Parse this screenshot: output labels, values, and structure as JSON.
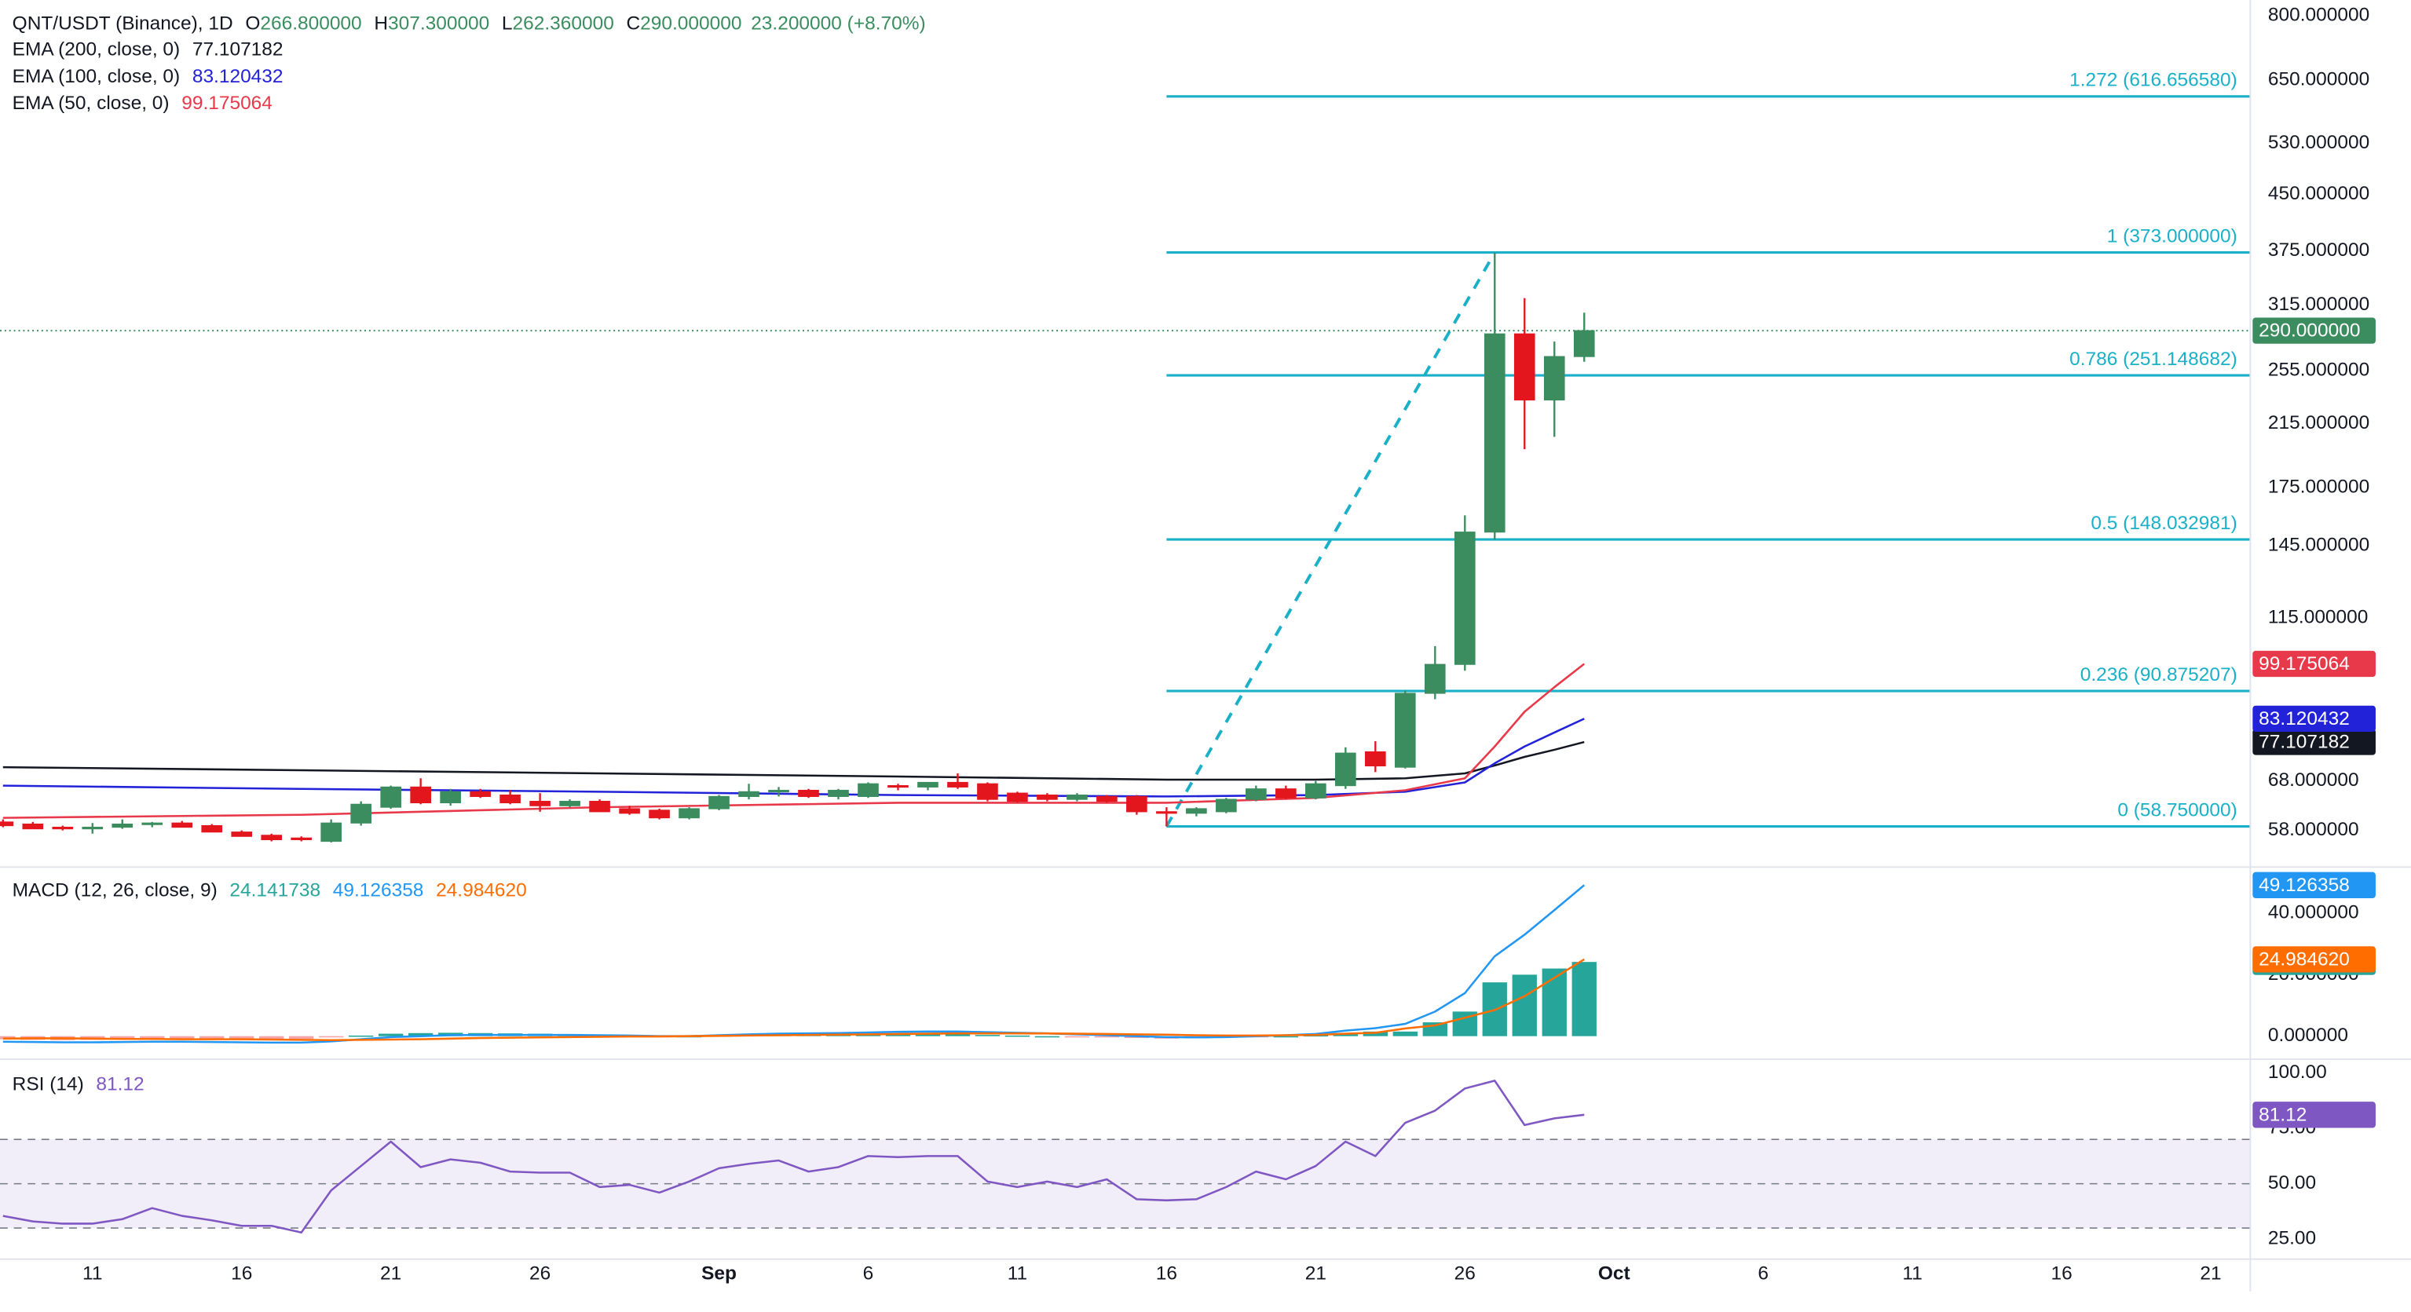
{
  "chart_data": [
    {
      "type": "candlestick",
      "title": "QNT/USDT (Binance), 1D",
      "ohlc_labels": [
        {
          "label": "O",
          "value": "266.800000"
        },
        {
          "label": "H",
          "value": "307.300000"
        },
        {
          "label": "L",
          "value": "262.360000"
        },
        {
          "label": "C",
          "value": "290.000000"
        }
      ],
      "change": "23.200000 (+8.70%)",
      "up_color": "#3b8d5f",
      "down_color": "#e3161e",
      "x": [
        0,
        1,
        2,
        3,
        4,
        5,
        6,
        7,
        8,
        9,
        10,
        11,
        12,
        13,
        14,
        15,
        16,
        17,
        18,
        19,
        20,
        21,
        22,
        23,
        24,
        25,
        26,
        27,
        28,
        29,
        30,
        31,
        32,
        33,
        34,
        35,
        36,
        37,
        38,
        39,
        40,
        41,
        42,
        43,
        44,
        45,
        46,
        47,
        48,
        49,
        50,
        51,
        52,
        53
      ],
      "open": [
        59.6,
        59.2,
        58.6,
        58.3,
        58.6,
        59.2,
        59.4,
        58.9,
        57.7,
        57.1,
        56.6,
        56.0,
        59.4,
        62.5,
        66.7,
        63.4,
        65.7,
        65.0,
        63.7,
        62.8,
        63.7,
        62.2,
        61.9,
        60.4,
        62.2,
        64.7,
        65.7,
        66.0,
        64.7,
        64.7,
        67.0,
        66.7,
        67.7,
        67.4,
        65.4,
        65.0,
        64.1,
        64.7,
        64.7,
        61.6,
        61.3,
        61.6,
        64.1,
        66.3,
        64.4,
        67.0,
        74.7,
        71.1,
        90.2,
        99.0,
        151.6,
        287,
        232,
        266.8
      ],
      "high": [
        60.1,
        59.6,
        58.9,
        59.4,
        60.1,
        59.6,
        59.8,
        59.2,
        58.0,
        57.4,
        56.9,
        60.1,
        63.7,
        67.0,
        68.6,
        66.3,
        66.3,
        66.0,
        65.4,
        64.1,
        64.1,
        62.8,
        62.2,
        62.5,
        65.0,
        67.4,
        66.7,
        66.3,
        66.3,
        67.7,
        67.4,
        67.7,
        69.7,
        67.7,
        65.7,
        65.4,
        65.4,
        65.0,
        65.0,
        62.5,
        62.5,
        64.4,
        67.0,
        67.0,
        68.0,
        75.8,
        77.3,
        91.0,
        105,
        160,
        373,
        322,
        280,
        307.3
      ],
      "low": [
        58.6,
        58.3,
        58.0,
        57.4,
        58.3,
        58.6,
        58.6,
        57.7,
        56.9,
        56.0,
        56.0,
        55.8,
        58.9,
        62.2,
        63.1,
        62.8,
        64.4,
        63.1,
        61.6,
        62.5,
        61.6,
        61.0,
        60.1,
        60.1,
        61.9,
        64.1,
        64.7,
        64.4,
        64.1,
        64.4,
        66.0,
        66.0,
        66.3,
        63.7,
        63.4,
        63.7,
        63.7,
        63.4,
        61.0,
        58.75,
        60.7,
        61.3,
        63.7,
        64.1,
        64.1,
        66.3,
        70.0,
        70.8,
        88.5,
        97,
        148,
        198,
        206,
        262.36
      ],
      "close": [
        58.9,
        58.3,
        58.3,
        58.6,
        59.2,
        59.4,
        58.6,
        57.7,
        56.9,
        56.3,
        56.3,
        59.4,
        63.1,
        66.7,
        63.4,
        65.7,
        64.7,
        63.4,
        62.8,
        63.7,
        61.6,
        61.3,
        60.4,
        62.2,
        64.7,
        65.7,
        66.0,
        64.7,
        66.0,
        67.4,
        66.7,
        67.7,
        66.7,
        64.1,
        63.7,
        64.1,
        65.0,
        63.7,
        61.6,
        61.3,
        62.2,
        64.1,
        66.3,
        64.4,
        67.4,
        74.4,
        71.4,
        90.2,
        99.0,
        151.6,
        287,
        232,
        266.8,
        290
      ],
      "series": [
        {
          "name": "EMA (200, close, 0)",
          "color": "#131722",
          "x": [
            0,
            10,
            20,
            30,
            39,
            44,
            47,
            49,
            50,
            51,
            52,
            53
          ],
          "values": [
            71.1,
            70.4,
            69.7,
            69.0,
            68.3,
            68.3,
            68.6,
            69.7,
            71.5,
            73.5,
            75.2,
            77.107182
          ]
        },
        {
          "name": "EMA (100, close, 0)",
          "color": "#2222d8",
          "x": [
            0,
            10,
            20,
            30,
            39,
            44,
            47,
            49,
            50,
            51,
            52,
            53
          ],
          "values": [
            67.0,
            66.3,
            65.7,
            65.0,
            64.7,
            65.0,
            65.7,
            67.7,
            72.0,
            76.0,
            79.5,
            83.120432
          ]
        },
        {
          "name": "EMA (50, close, 0)",
          "color": "#e8394a",
          "x": [
            0,
            10,
            20,
            30,
            39,
            44,
            47,
            49,
            50,
            51,
            52,
            53
          ],
          "values": [
            60.4,
            61.0,
            62.5,
            63.4,
            63.4,
            64.4,
            66.0,
            68.6,
            76.0,
            85.0,
            92.0,
            99.175064
          ]
        }
      ],
      "fib": {
        "color": "#1ab0c8",
        "trend": {
          "x": [
            39,
            50
          ],
          "values": [
            58.75,
            373
          ]
        },
        "levels": [
          {
            "label": "1.272 (616.656580)",
            "value": 616.65658
          },
          {
            "label": "1 (373.000000)",
            "value": 373
          },
          {
            "label": "0.786 (251.148682)",
            "value": 251.148682
          },
          {
            "label": "0.5 (148.032981)",
            "value": 148.032981
          },
          {
            "label": "0.236 (90.875207)",
            "value": 90.875207
          },
          {
            "label": "0 (58.750000)",
            "value": 58.75
          }
        ]
      },
      "log": true,
      "ylim": [
        51.8,
        841
      ],
      "yticks": [
        {
          "value": 800,
          "label": "800.000000"
        },
        {
          "value": 650,
          "label": "650.000000"
        },
        {
          "value": 530,
          "label": "530.000000"
        },
        {
          "value": 450,
          "label": "450.000000"
        },
        {
          "value": 375,
          "label": "375.000000"
        },
        {
          "value": 315,
          "label": "315.000000"
        },
        {
          "value": 255,
          "label": "255.000000"
        },
        {
          "value": 215,
          "label": "215.000000"
        },
        {
          "value": 175,
          "label": "175.000000"
        },
        {
          "value": 145,
          "label": "145.000000"
        },
        {
          "value": 115,
          "label": "115.000000"
        },
        {
          "value": 68,
          "label": "68.000000"
        },
        {
          "value": 58,
          "label": "58.000000"
        }
      ],
      "xlim": [
        -0.1,
        75.3
      ],
      "xticks": [
        {
          "value": 3,
          "label": "11"
        },
        {
          "value": 8,
          "label": "16"
        },
        {
          "value": 13,
          "label": "21"
        },
        {
          "value": 18,
          "label": "26"
        },
        {
          "value": 24,
          "label": "Sep"
        },
        {
          "value": 29,
          "label": "6"
        },
        {
          "value": 34,
          "label": "11"
        },
        {
          "value": 39,
          "label": "16"
        },
        {
          "value": 44,
          "label": "21"
        },
        {
          "value": 49,
          "label": "26"
        },
        {
          "value": 54,
          "label": "Oct"
        },
        {
          "value": 59,
          "label": "6"
        },
        {
          "value": 64,
          "label": "11"
        },
        {
          "value": 69,
          "label": "16"
        },
        {
          "value": 74,
          "label": "21"
        }
      ]
    },
    {
      "type": "macd",
      "label": "MACD (12, 26, close, 9)",
      "series": [
        {
          "kind": "histogram",
          "color": "#26a69a",
          "negative_color": "#f5a3a6",
          "last_label": "24.141738",
          "values": [
            -1.0,
            -1.2,
            -1.3,
            -1.2,
            -1.0,
            -0.9,
            -0.8,
            -0.9,
            -1.0,
            -1.0,
            -0.9,
            -0.4,
            0.2,
            0.8,
            1.0,
            1.1,
            1.0,
            0.9,
            0.8,
            0.7,
            0.5,
            0.3,
            0.1,
            0.0,
            0.2,
            0.4,
            0.5,
            0.5,
            0.5,
            0.6,
            0.7,
            0.7,
            0.6,
            0.4,
            0.2,
            0.0,
            -0.2,
            -0.4,
            -0.6,
            -0.8,
            -0.7,
            -0.5,
            -0.2,
            0.0,
            0.3,
            1.0,
            1.5,
            1.5,
            4.5,
            8,
            17.5,
            20,
            22,
            24.141738
          ]
        },
        {
          "kind": "line",
          "color": "#2196f3",
          "last_label": "49.126358",
          "values": [
            -1.8,
            -1.9,
            -2.0,
            -2.0,
            -1.9,
            -1.8,
            -1.8,
            -1.9,
            -2.0,
            -2.1,
            -2.1,
            -1.7,
            -1.0,
            -0.3,
            0.0,
            0.3,
            0.4,
            0.4,
            0.4,
            0.4,
            0.3,
            0.2,
            0.0,
            0.0,
            0.3,
            0.6,
            0.8,
            0.9,
            1.0,
            1.2,
            1.4,
            1.5,
            1.5,
            1.3,
            1.1,
            0.9,
            0.6,
            0.3,
            0.0,
            -0.3,
            -0.4,
            -0.3,
            0.0,
            0.3,
            0.7,
            1.8,
            2.6,
            4,
            8,
            14,
            26,
            33,
            41,
            49.126358
          ]
        },
        {
          "kind": "line",
          "color": "#ff6d00",
          "last_label": "24.984620",
          "values": [
            -0.8,
            -0.7,
            -0.7,
            -0.8,
            -0.9,
            -0.9,
            -1.0,
            -1.0,
            -1.0,
            -1.1,
            -1.2,
            -1.3,
            -1.2,
            -1.1,
            -1.0,
            -0.8,
            -0.6,
            -0.5,
            -0.4,
            -0.3,
            -0.2,
            -0.1,
            -0.1,
            0.0,
            0.1,
            0.2,
            0.3,
            0.4,
            0.5,
            0.6,
            0.7,
            0.8,
            0.9,
            0.9,
            0.9,
            0.9,
            0.8,
            0.7,
            0.6,
            0.5,
            0.3,
            0.2,
            0.2,
            0.3,
            0.4,
            0.8,
            1.1,
            2.5,
            3.5,
            6,
            8.5,
            13,
            19,
            24.98462
          ]
        }
      ],
      "ylim": [
        -7,
        54.5
      ],
      "yticks": [
        {
          "value": 0,
          "label": "0.000000"
        },
        {
          "value": 20,
          "label": "20.000000"
        },
        {
          "value": 40,
          "label": "40.000000"
        }
      ]
    },
    {
      "type": "rsi",
      "label": "RSI (14)",
      "color": "#7e57c2",
      "values": [
        35.5,
        33,
        32,
        32,
        34,
        39,
        35.5,
        33.5,
        31,
        31,
        28,
        47,
        58,
        69,
        57.5,
        61,
        59.5,
        55.5,
        55,
        55,
        48.5,
        49.5,
        46,
        51,
        57,
        59,
        60.5,
        55.5,
        57.5,
        62.5,
        62,
        62.5,
        62.5,
        51,
        48.5,
        51,
        48.5,
        52,
        43,
        42.5,
        43,
        48.5,
        55.5,
        52,
        58,
        69,
        62.5,
        77.5,
        83,
        93,
        96.5,
        76.5,
        79.5,
        81.12
      ],
      "levels": [
        30,
        50,
        70
      ],
      "ylim": [
        16.7,
        105.5
      ],
      "yticks": [
        {
          "value": 25,
          "label": "25.00"
        },
        {
          "value": 50,
          "label": "50.00"
        },
        {
          "value": 75,
          "label": "75.00"
        },
        {
          "value": 100,
          "label": "100.00"
        }
      ]
    }
  ]
}
